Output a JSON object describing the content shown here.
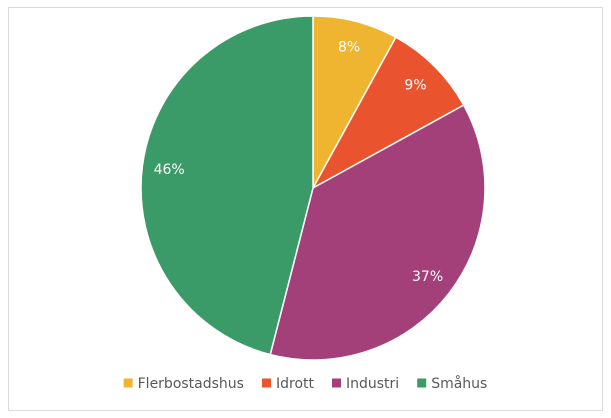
{
  "chart_data": {
    "type": "pie",
    "categories": [
      "Flerbostadshus",
      "Idrott",
      "Industri",
      "Småhus"
    ],
    "values": [
      8,
      9,
      37,
      46
    ],
    "value_labels": [
      "8%",
      "9%",
      "37%",
      "46%"
    ],
    "colors": [
      "#f0b530",
      "#e9542f",
      "#a3407a",
      "#3a9a68"
    ],
    "legend": "bottom"
  }
}
